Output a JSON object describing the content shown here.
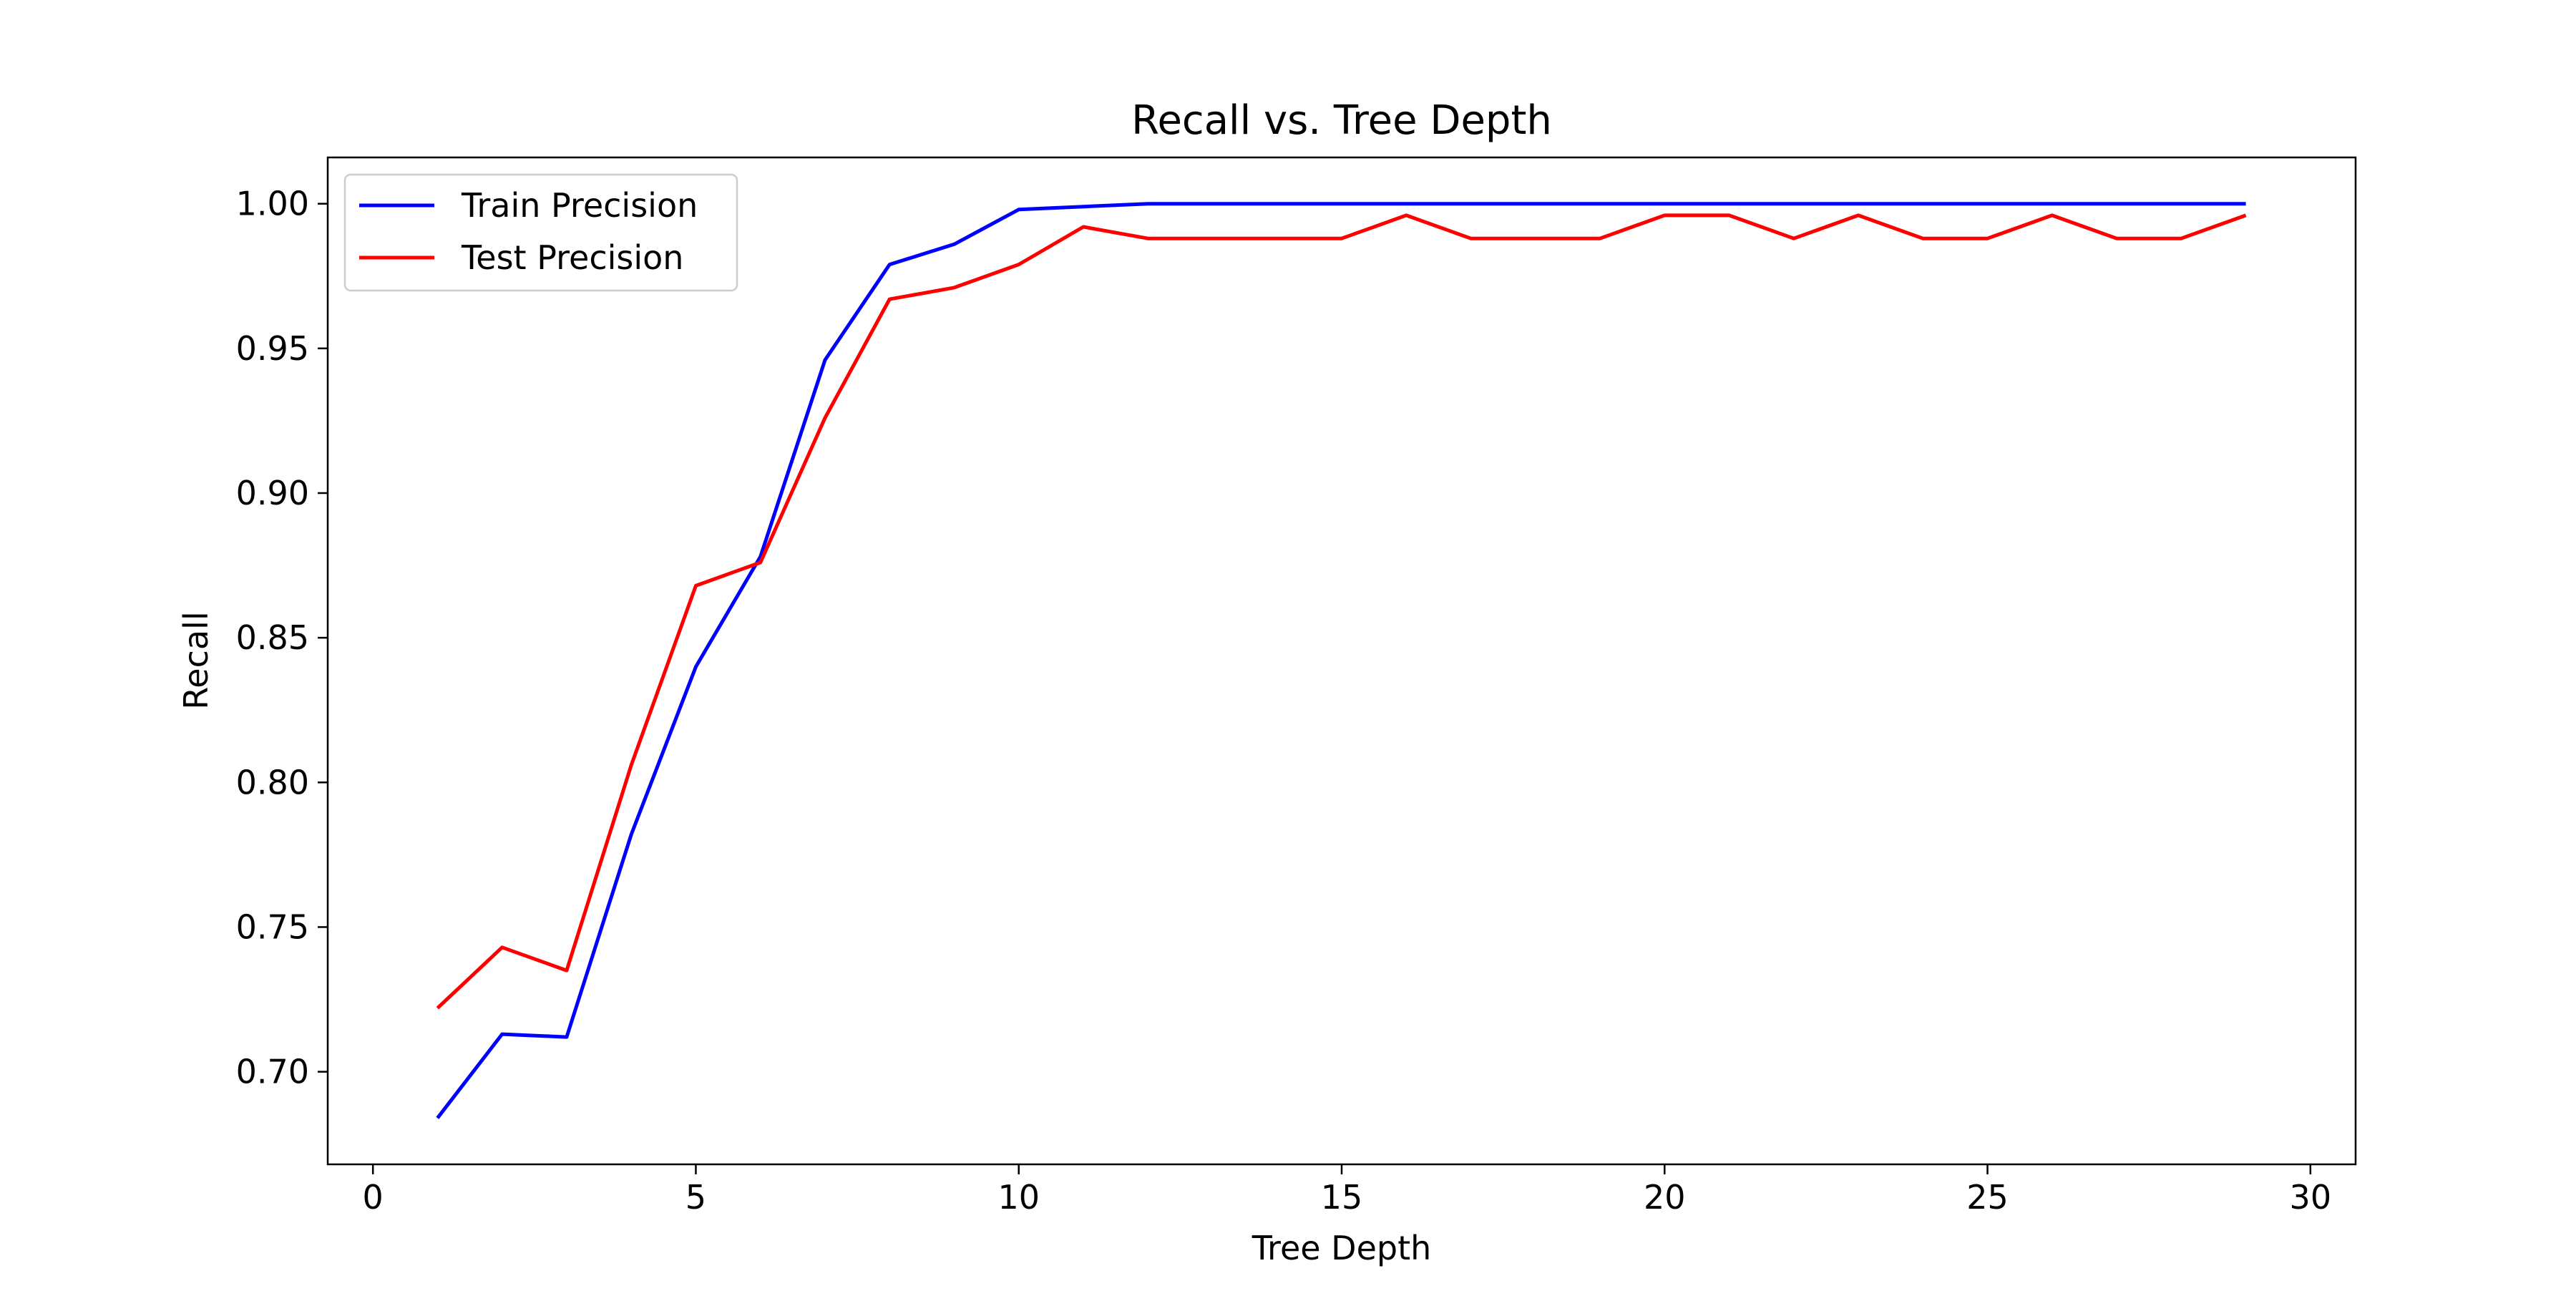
{
  "chart_data": {
    "type": "line",
    "title": "Recall vs. Tree Depth",
    "xlabel": "Tree Depth",
    "ylabel": "Recall",
    "xlim": [
      -0.7,
      30.7
    ],
    "ylim": [
      0.668,
      1.016
    ],
    "xticks": [
      0,
      5,
      10,
      15,
      20,
      25,
      30
    ],
    "xtick_labels": [
      "0",
      "5",
      "10",
      "15",
      "20",
      "25",
      "30"
    ],
    "yticks": [
      0.7,
      0.75,
      0.8,
      0.85,
      0.9,
      0.95,
      1.0
    ],
    "ytick_labels": [
      "0.70",
      "0.75",
      "0.80",
      "0.85",
      "0.90",
      "0.95",
      "1.00"
    ],
    "grid": false,
    "legend_position": "upper left",
    "x": [
      1,
      2,
      3,
      4,
      5,
      6,
      7,
      8,
      9,
      10,
      11,
      12,
      13,
      14,
      15,
      16,
      17,
      18,
      19,
      20,
      21,
      22,
      23,
      24,
      25,
      26,
      27,
      28,
      29
    ],
    "series": [
      {
        "name": "Train Precision",
        "color": "#0000ff",
        "values": [
          0.684,
          0.713,
          0.712,
          0.782,
          0.84,
          0.878,
          0.946,
          0.979,
          0.986,
          0.998,
          0.999,
          1.0,
          1.0,
          1.0,
          1.0,
          1.0,
          1.0,
          1.0,
          1.0,
          1.0,
          1.0,
          1.0,
          1.0,
          1.0,
          1.0,
          1.0,
          1.0,
          1.0,
          1.0
        ]
      },
      {
        "name": "Test Precision",
        "color": "#ff0000",
        "values": [
          0.722,
          0.743,
          0.735,
          0.806,
          0.868,
          0.876,
          0.926,
          0.967,
          0.971,
          0.979,
          0.992,
          0.988,
          0.988,
          0.988,
          0.988,
          0.996,
          0.988,
          0.988,
          0.988,
          0.996,
          0.996,
          0.988,
          0.996,
          0.988,
          0.988,
          0.996,
          0.988,
          0.988,
          0.996
        ]
      }
    ]
  }
}
